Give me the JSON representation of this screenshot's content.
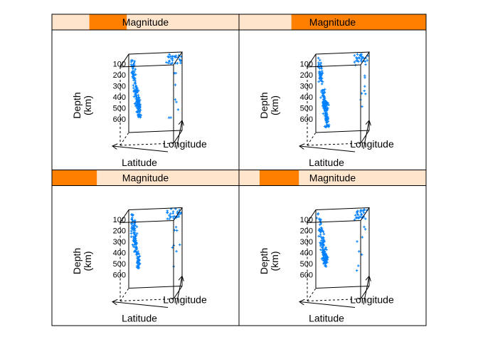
{
  "chart_data": {
    "type": "scatter",
    "subtype": "3d-cloud-trellis",
    "layout": {
      "columns": 2,
      "rows": 2,
      "order": "bottom-left to top-right"
    },
    "point_color": "#0080ff",
    "strip": {
      "label": "Magnitude",
      "background": "#ffe5cc",
      "highlight": "#ff7f00"
    },
    "axes": {
      "z": {
        "label_line1": "Depth",
        "label_line2": "(km)",
        "ticks": [
          "100",
          "200",
          "300",
          "400",
          "500",
          "600"
        ],
        "reversed": true
      },
      "y": {
        "label": "Latitude"
      },
      "x": {
        "label": "Longitude"
      }
    },
    "panels": [
      {
        "shingle_level": 1,
        "strip_range": [
          0.0,
          0.24
        ]
      },
      {
        "shingle_level": 2,
        "strip_range": [
          0.11,
          0.32
        ]
      },
      {
        "shingle_level": 3,
        "strip_range": [
          0.2,
          0.4
        ]
      },
      {
        "shingle_level": 4,
        "strip_range": [
          0.28,
          1.0
        ]
      }
    ]
  }
}
